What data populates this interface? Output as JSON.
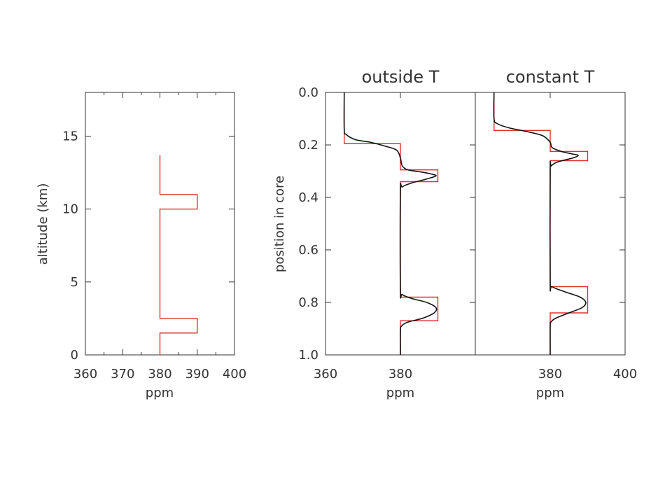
{
  "colors": {
    "measured_profile": "#e03030",
    "model_profile": "#111111",
    "axes": "#333333"
  },
  "chart_data": [
    {
      "type": "line",
      "title": "",
      "xlabel": "ppm",
      "ylabel": "altitude (km)",
      "xlim": [
        360,
        400
      ],
      "ylim": [
        0,
        18
      ],
      "xticks": [
        "360",
        "370",
        "380",
        "390",
        "400"
      ],
      "yticks": [
        "0",
        "5",
        "10",
        "15"
      ],
      "series": [
        {
          "color": "#e03030",
          "points": [
            [
              380,
              0
            ],
            [
              380,
              1.5
            ],
            [
              390,
              1.5
            ],
            [
              390,
              2.5
            ],
            [
              380,
              2.5
            ],
            [
              380,
              10
            ],
            [
              390,
              10
            ],
            [
              390,
              11
            ],
            [
              380,
              11
            ],
            [
              380,
              13.7
            ]
          ]
        }
      ]
    },
    {
      "type": "line",
      "title": "outside T",
      "xlabel": "ppm",
      "ylabel": "position in core",
      "xlim": [
        360,
        400
      ],
      "ylim": [
        0,
        1.0
      ],
      "y_inverted": true,
      "xticks": [
        "360",
        "380"
      ],
      "yticks": [
        "0.0",
        "0.2",
        "0.4",
        "0.6",
        "0.8",
        "1.0"
      ],
      "series": [
        {
          "color": "#e03030",
          "shape": "step",
          "points": [
            [
              365,
              0
            ],
            [
              365,
              0.195
            ],
            [
              380,
              0.195
            ],
            [
              380,
              0.295
            ],
            [
              390,
              0.295
            ],
            [
              390,
              0.34
            ],
            [
              380,
              0.34
            ],
            [
              380,
              0.78
            ],
            [
              390,
              0.78
            ],
            [
              390,
              0.87
            ],
            [
              380,
              0.87
            ],
            [
              380,
              1.0
            ]
          ]
        },
        {
          "color": "#111111",
          "shape": "smooth",
          "points": [
            [
              365,
              0
            ],
            [
              365,
              0.14
            ],
            [
              365.5,
              0.16
            ],
            [
              368,
              0.18
            ],
            [
              372,
              0.19
            ],
            [
              376,
              0.205
            ],
            [
              379,
              0.22
            ],
            [
              380,
              0.25
            ],
            [
              380.5,
              0.28
            ],
            [
              382,
              0.295
            ],
            [
              385,
              0.302
            ],
            [
              388,
              0.31
            ],
            [
              389.5,
              0.318
            ],
            [
              387,
              0.33
            ],
            [
              383,
              0.345
            ],
            [
              380.5,
              0.36
            ],
            [
              380,
              0.38
            ],
            [
              380,
              0.75
            ],
            [
              380.5,
              0.77
            ],
            [
              383,
              0.785
            ],
            [
              387,
              0.8
            ],
            [
              389.5,
              0.82
            ],
            [
              389,
              0.84
            ],
            [
              386,
              0.86
            ],
            [
              382,
              0.875
            ],
            [
              380.3,
              0.89
            ],
            [
              380,
              0.91
            ],
            [
              380,
              1.0
            ]
          ]
        }
      ]
    },
    {
      "type": "line",
      "title": "constant T",
      "xlabel": "ppm",
      "ylabel": "",
      "xlim": [
        360,
        400
      ],
      "ylim": [
        0,
        1.0
      ],
      "y_inverted": true,
      "xticks": [
        "380",
        "400"
      ],
      "yticks": [],
      "series": [
        {
          "color": "#e03030",
          "shape": "step",
          "points": [
            [
              365,
              0
            ],
            [
              365,
              0.145
            ],
            [
              380,
              0.145
            ],
            [
              380,
              0.225
            ],
            [
              390,
              0.225
            ],
            [
              390,
              0.26
            ],
            [
              380,
              0.26
            ],
            [
              380,
              0.74
            ],
            [
              390,
              0.74
            ],
            [
              390,
              0.84
            ],
            [
              380,
              0.84
            ],
            [
              380,
              1.0
            ]
          ]
        },
        {
          "color": "#111111",
          "shape": "smooth",
          "points": [
            [
              365,
              0
            ],
            [
              365,
              0.1
            ],
            [
              366,
              0.12
            ],
            [
              369,
              0.135
            ],
            [
              374,
              0.15
            ],
            [
              378,
              0.165
            ],
            [
              380,
              0.19
            ],
            [
              380.5,
              0.21
            ],
            [
              383,
              0.225
            ],
            [
              386,
              0.235
            ],
            [
              387.5,
              0.24
            ],
            [
              386,
              0.25
            ],
            [
              382,
              0.265
            ],
            [
              380.3,
              0.28
            ],
            [
              380,
              0.3
            ],
            [
              380,
              0.72
            ],
            [
              380.5,
              0.74
            ],
            [
              384,
              0.76
            ],
            [
              388,
              0.78
            ],
            [
              389.5,
              0.8
            ],
            [
              388.5,
              0.82
            ],
            [
              385,
              0.84
            ],
            [
              381.5,
              0.86
            ],
            [
              380.2,
              0.875
            ],
            [
              380,
              0.89
            ],
            [
              380,
              1.0
            ]
          ]
        }
      ]
    }
  ]
}
